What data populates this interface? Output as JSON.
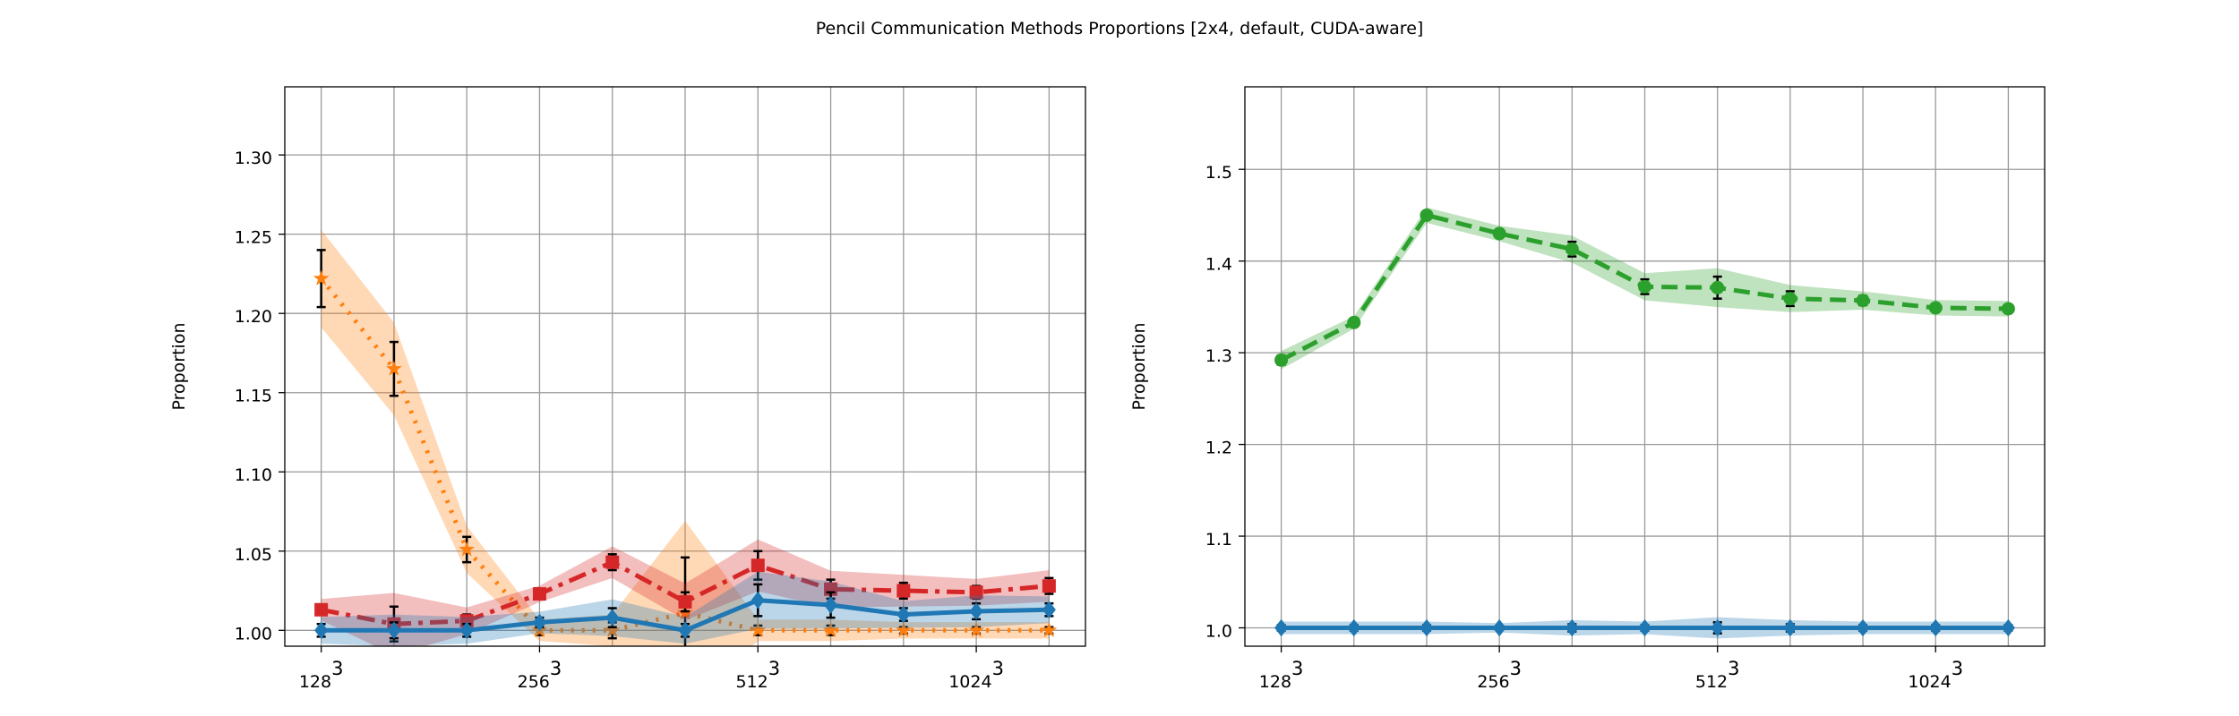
{
  "title": "Pencil Communication Methods Proportions [2x4, default, CUDA-aware]",
  "chart_data": [
    {
      "type": "line",
      "ylabel": "Proportion",
      "xlim": [
        -0.5,
        10.5
      ],
      "ylim": [
        0.99,
        1.343
      ],
      "yticks": [
        1.0,
        1.05,
        1.1,
        1.15,
        1.2,
        1.25,
        1.3
      ],
      "ytick_labels": [
        "1.00",
        "1.05",
        "1.10",
        "1.15",
        "1.20",
        "1.25",
        "1.30"
      ],
      "xticks": [
        {
          "x": 0,
          "base": "128",
          "exp": "3"
        },
        {
          "x": 3,
          "base": "256",
          "exp": "3"
        },
        {
          "x": 6,
          "base": "512",
          "exp": "3"
        },
        {
          "x": 9,
          "base": "1024",
          "exp": "3"
        }
      ],
      "grid": true,
      "x": [
        0,
        1,
        2,
        3,
        4,
        5,
        6,
        7,
        8,
        9,
        10
      ],
      "series": [
        {
          "color": "#ff7f0e",
          "linestyle": "dotted",
          "marker": "star",
          "values": [
            1.222,
            1.165,
            1.051,
            1.0,
            1.0,
            1.011,
            1.0,
            1.0,
            1.0,
            1.0,
            1.0
          ],
          "errors": [
            0.018,
            0.017,
            0.008,
            0.003,
            0.005,
            0.035,
            0.003,
            0.003,
            0.002,
            0.002,
            0.002
          ]
        },
        {
          "color": "#d62728",
          "linestyle": "dashdot",
          "marker": "square",
          "values": [
            1.013,
            1.004,
            1.006,
            1.023,
            1.043,
            1.018,
            1.041,
            1.026,
            1.025,
            1.024,
            1.028
          ],
          "errors": [
            0.003,
            0.011,
            0.004,
            0.002,
            0.005,
            0.006,
            0.009,
            0.006,
            0.005,
            0.004,
            0.005
          ]
        },
        {
          "color": "#1f77b4",
          "linestyle": "solid",
          "marker": "diamond",
          "values": [
            1.0,
            1.0,
            1.0,
            1.005,
            1.008,
            1.0,
            1.019,
            1.016,
            1.01,
            1.012,
            1.013
          ],
          "errors": [
            0.004,
            0.005,
            0.004,
            0.003,
            0.006,
            0.004,
            0.01,
            0.008,
            0.004,
            0.005,
            0.004
          ]
        }
      ]
    },
    {
      "type": "line",
      "ylabel": "Proportion",
      "xlim": [
        -0.5,
        10.5
      ],
      "ylim": [
        0.98,
        1.59
      ],
      "yticks": [
        1.0,
        1.1,
        1.2,
        1.3,
        1.4,
        1.5
      ],
      "ytick_labels": [
        "1.0",
        "1.1",
        "1.2",
        "1.3",
        "1.4",
        "1.5"
      ],
      "xticks": [
        {
          "x": 0,
          "base": "128",
          "exp": "3"
        },
        {
          "x": 3,
          "base": "256",
          "exp": "3"
        },
        {
          "x": 6,
          "base": "512",
          "exp": "3"
        },
        {
          "x": 9,
          "base": "1024",
          "exp": "3"
        }
      ],
      "grid": true,
      "x": [
        0,
        1,
        2,
        3,
        4,
        5,
        6,
        7,
        8,
        9,
        10
      ],
      "series": [
        {
          "color": "#2ca02c",
          "linestyle": "dashed",
          "marker": "circle",
          "values": [
            1.292,
            1.333,
            1.45,
            1.43,
            1.413,
            1.372,
            1.371,
            1.359,
            1.357,
            1.349,
            1.348
          ],
          "errors": [
            0.005,
            0.003,
            0.004,
            0.004,
            0.008,
            0.008,
            0.012,
            0.008,
            0.005,
            0.004,
            0.004
          ]
        },
        {
          "color": "#1f77b4",
          "linestyle": "solid",
          "marker": "diamond",
          "values": [
            1.0,
            1.0,
            1.0,
            1.0,
            1.0,
            1.0,
            1.0,
            1.0,
            1.0,
            1.0,
            1.0
          ],
          "errors": [
            0.003,
            0.003,
            0.003,
            0.002,
            0.004,
            0.003,
            0.006,
            0.004,
            0.003,
            0.003,
            0.003
          ]
        }
      ]
    }
  ]
}
